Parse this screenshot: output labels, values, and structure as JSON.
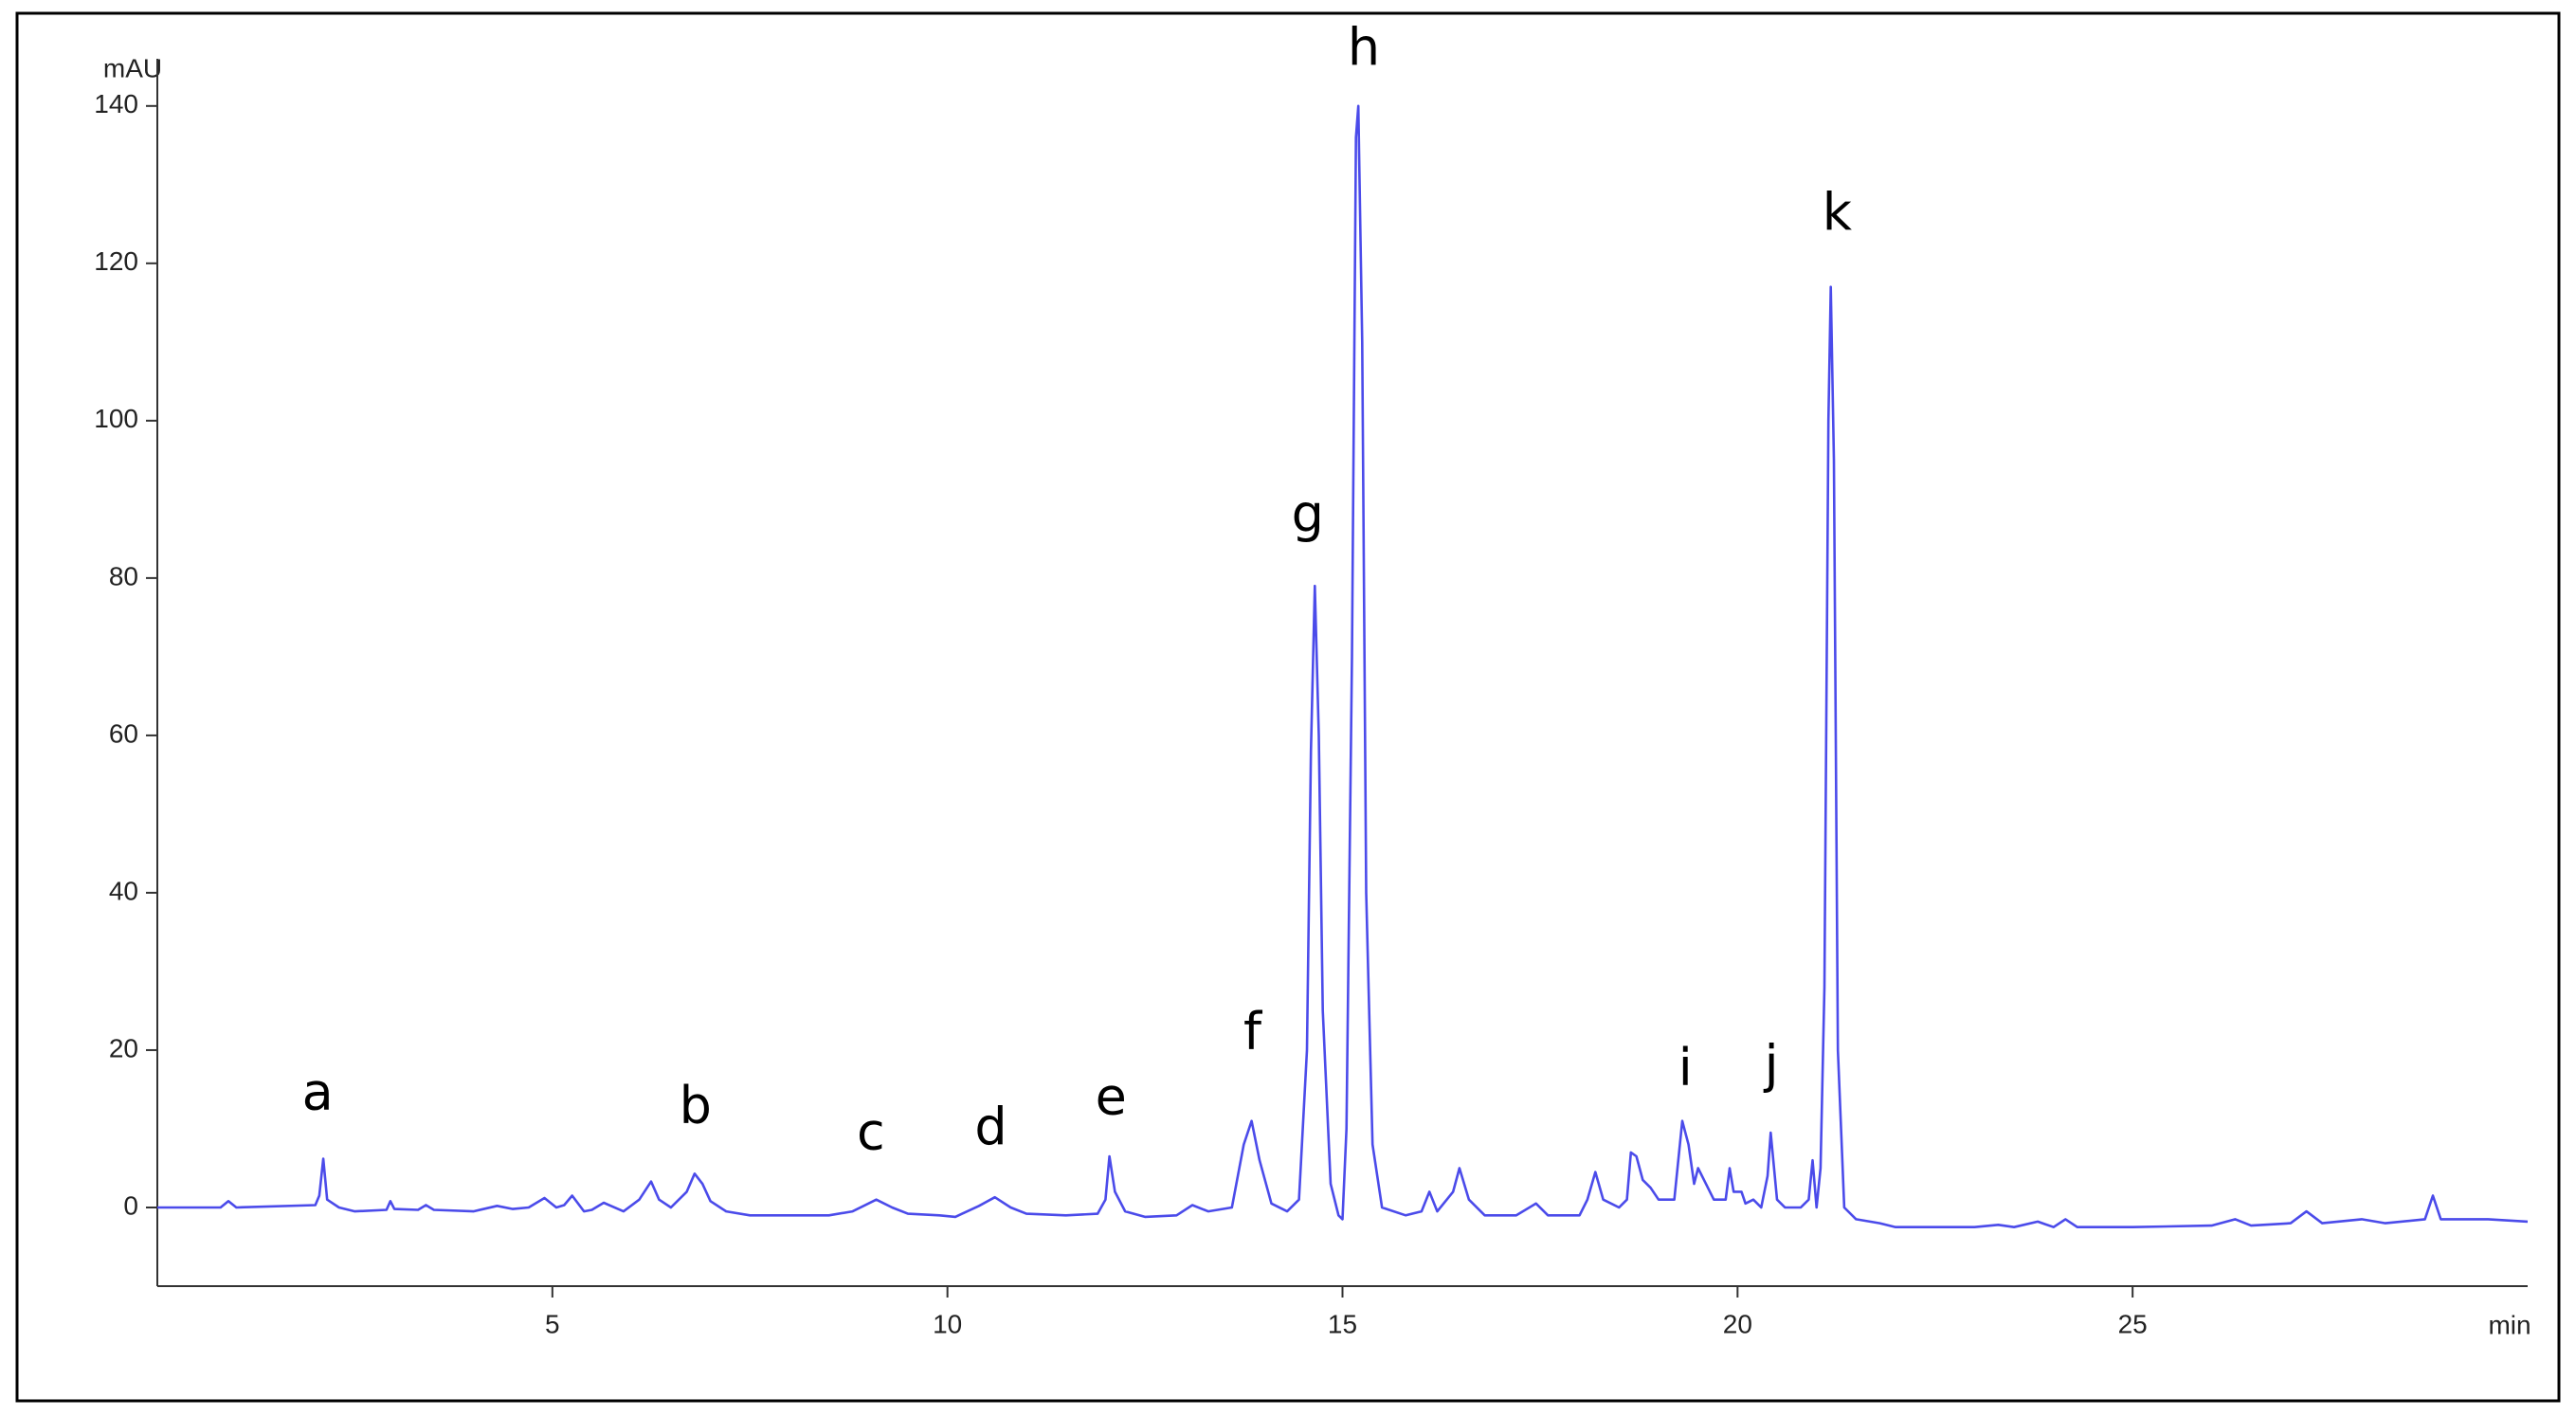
{
  "chart_data": {
    "type": "line",
    "x_label": "min",
    "y_label": "mAU",
    "color": "#4b4bea",
    "xlim": [
      0,
      30
    ],
    "ylim": [
      -10,
      146
    ],
    "xticks": [
      5,
      10,
      15,
      20,
      25
    ],
    "yticks": [
      0,
      20,
      40,
      60,
      80,
      100,
      120,
      140
    ],
    "x": [
      0.0,
      0.8,
      0.9,
      1.0,
      2.0,
      2.05,
      2.1,
      2.15,
      2.3,
      2.5,
      2.9,
      2.95,
      3.0,
      3.3,
      3.4,
      3.5,
      4.0,
      4.3,
      4.5,
      4.7,
      4.9,
      5.05,
      5.15,
      5.25,
      5.4,
      5.5,
      5.65,
      5.9,
      6.1,
      6.25,
      6.35,
      6.5,
      6.7,
      6.8,
      6.9,
      7.0,
      7.2,
      7.5,
      8.0,
      8.5,
      8.8,
      9.1,
      9.3,
      9.5,
      9.9,
      10.1,
      10.4,
      10.6,
      10.8,
      11.0,
      11.5,
      11.9,
      12.0,
      12.05,
      12.12,
      12.25,
      12.5,
      12.9,
      13.1,
      13.3,
      13.6,
      13.75,
      13.85,
      13.95,
      14.1,
      14.3,
      14.45,
      14.55,
      14.6,
      14.65,
      14.7,
      14.75,
      14.85,
      14.95,
      15.0,
      15.05,
      15.12,
      15.17,
      15.2,
      15.25,
      15.3,
      15.38,
      15.5,
      15.8,
      16.0,
      16.1,
      16.2,
      16.4,
      16.48,
      16.6,
      16.8,
      17.2,
      17.45,
      17.6,
      18.0,
      18.1,
      18.2,
      18.3,
      18.5,
      18.6,
      18.65,
      18.72,
      18.8,
      18.9,
      19.0,
      19.2,
      19.3,
      19.38,
      19.45,
      19.5,
      19.6,
      19.7,
      19.85,
      19.9,
      19.95,
      20.05,
      20.1,
      20.2,
      20.3,
      20.38,
      20.42,
      20.5,
      20.6,
      20.8,
      20.9,
      20.95,
      21.0,
      21.05,
      21.1,
      21.15,
      21.18,
      21.22,
      21.27,
      21.35,
      21.5,
      21.8,
      22.0,
      22.5,
      23.0,
      23.3,
      23.5,
      23.8,
      24.0,
      24.15,
      24.3,
      25.0,
      26.0,
      26.3,
      26.5,
      27.0,
      27.2,
      27.4,
      27.9,
      28.2,
      28.7,
      28.8,
      28.9,
      29.5,
      30.0
    ],
    "values": [
      0,
      0,
      0.8,
      0,
      0.3,
      1.5,
      6.2,
      1,
      0,
      -0.5,
      -0.3,
      0.8,
      -0.2,
      -0.3,
      0.3,
      -0.3,
      -0.5,
      0.2,
      -0.2,
      0,
      1.2,
      0,
      0.3,
      1.5,
      -0.5,
      -0.3,
      0.6,
      -0.5,
      1,
      3.3,
      1,
      0,
      2,
      4.3,
      3,
      0.8,
      -0.5,
      -1,
      -1,
      -1,
      -0.5,
      1,
      0,
      -0.8,
      -1,
      -1.2,
      0.2,
      1.3,
      0,
      -0.8,
      -1,
      -0.8,
      1,
      6.5,
      2,
      -0.5,
      -1.2,
      -1,
      0.3,
      -0.5,
      0,
      8,
      11,
      6,
      0.5,
      -0.5,
      1,
      20,
      58,
      79,
      60,
      25,
      3,
      -1,
      -1.5,
      10,
      70,
      136,
      140,
      110,
      40,
      8,
      0,
      -1,
      -0.5,
      2,
      -0.5,
      2,
      5,
      1,
      -1,
      -1,
      0.5,
      -1,
      -1,
      1,
      4.5,
      1,
      0,
      1,
      7,
      6.5,
      3.5,
      2.5,
      1,
      1,
      11,
      8,
      3,
      5,
      3,
      1,
      1,
      5,
      2,
      2,
      0.5,
      1,
      0,
      4,
      9.5,
      1,
      0,
      0,
      1,
      6,
      0,
      5,
      28,
      100,
      117,
      95,
      20,
      0,
      -1.5,
      -2,
      -2.5,
      -2.5,
      -2.5,
      -2.2,
      -2.5,
      -1.8,
      -2.5,
      -1.5,
      -2.5,
      -2.5,
      -2.3,
      -1.5,
      -2.3,
      -2,
      -0.5,
      -2,
      -1.5,
      -2,
      -1.5,
      1.5,
      -1.5,
      -1.5,
      -1.8
    ],
    "annotations": [
      {
        "text": "a",
        "x": 2.03,
        "y": 14.2
      },
      {
        "text": "b",
        "x": 6.81,
        "y": 12.5
      },
      {
        "text": "c",
        "x": 9.03,
        "y": 9.2
      },
      {
        "text": "d",
        "x": 10.55,
        "y": 9.8
      },
      {
        "text": "e",
        "x": 12.07,
        "y": 13.6
      },
      {
        "text": "f",
        "x": 13.86,
        "y": 21.9
      },
      {
        "text": "g",
        "x": 14.56,
        "y": 87.7
      },
      {
        "text": "h",
        "x": 15.27,
        "y": 147
      },
      {
        "text": "i",
        "x": 19.34,
        "y": 17.3
      },
      {
        "text": "j",
        "x": 20.43,
        "y": 17.7
      },
      {
        "text": "k",
        "x": 21.26,
        "y": 126
      }
    ]
  }
}
